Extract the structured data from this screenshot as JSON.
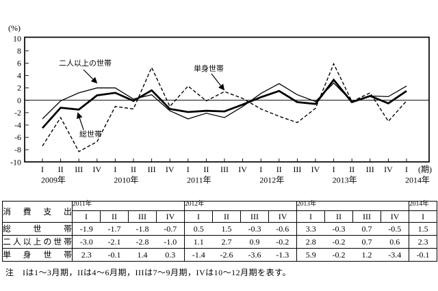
{
  "chart_data": {
    "type": "line",
    "unit_label": "(%)",
    "axis_suffix": "(期)",
    "ylim": [
      -10,
      10
    ],
    "ytick_step": 2,
    "grid": false,
    "legend_position": "inline-annotations",
    "quarter_labels": [
      "I",
      "II",
      "III",
      "IV"
    ],
    "years": [
      {
        "label": "2009年",
        "start": 0
      },
      {
        "label": "2010年",
        "start": 4
      },
      {
        "label": "2011年",
        "start": 8
      },
      {
        "label": "2012年",
        "start": 12
      },
      {
        "label": "2013年",
        "start": 16
      },
      {
        "label": "2014年",
        "start": 20
      }
    ],
    "series": [
      {
        "key": "total-households",
        "name": "総世帯",
        "style": "thick-solid",
        "values": [
          -4.5,
          -1.2,
          -1.5,
          0.8,
          1.2,
          -0.1,
          1.6,
          -1.4,
          -1.9,
          -1.7,
          -1.8,
          -0.7,
          0.5,
          1.5,
          -0.3,
          -0.6,
          3.3,
          -0.3,
          0.7,
          -0.5,
          1.5
        ]
      },
      {
        "key": "two-or-more-person-households",
        "name": "二人以上の世帯",
        "style": "thin-solid",
        "values": [
          -3.0,
          -0.1,
          1.2,
          2.0,
          2.0,
          0.2,
          0.9,
          -1.7,
          -3.0,
          -2.1,
          -2.8,
          -1.0,
          1.1,
          2.7,
          0.9,
          -0.2,
          2.8,
          -0.2,
          0.7,
          0.6,
          2.3
        ]
      },
      {
        "key": "single-person-households",
        "name": "単身世帯",
        "style": "dashed",
        "values": [
          -7.4,
          -2.8,
          -8.3,
          -6.7,
          -1.0,
          -1.4,
          5.3,
          -1.0,
          2.3,
          -0.1,
          1.4,
          0.3,
          -1.4,
          -2.6,
          -3.6,
          -1.3,
          5.9,
          -0.2,
          1.2,
          -3.4,
          -0.1
        ]
      }
    ],
    "annotations": [
      {
        "label": "二人以上の世帯",
        "points_to": "two-or-more-person-households"
      },
      {
        "label": "単身世帯",
        "points_to": "single-person-households"
      },
      {
        "label": "総世帯",
        "points_to": "total-households"
      }
    ]
  },
  "table": {
    "corner_label": "消費支出",
    "year_groups": [
      {
        "label": "2011年",
        "cols": 4
      },
      {
        "label": "2012年",
        "cols": 4
      },
      {
        "label": "2013年",
        "cols": 4
      },
      {
        "label": "2014年",
        "cols": 1
      }
    ],
    "quarter_headers": [
      "I",
      "II",
      "III",
      "IV",
      "I",
      "II",
      "III",
      "IV",
      "I",
      "II",
      "III",
      "IV",
      "I"
    ],
    "rows": [
      {
        "label": "総世帯",
        "values": [
          "-1.9",
          "-1.7",
          "-1.8",
          "-0.7",
          "0.5",
          "1.5",
          "-0.3",
          "-0.6",
          "3.3",
          "-0.3",
          "0.7",
          "-0.5",
          "1.5"
        ]
      },
      {
        "label": "二人以上の世帯",
        "values": [
          "-3.0",
          "-2.1",
          "-2.8",
          "-1.0",
          "1.1",
          "2.7",
          "0.9",
          "-0.2",
          "2.8",
          "-0.2",
          "0.7",
          "0.6",
          "2.3"
        ]
      },
      {
        "label": "単身世帯",
        "values": [
          "2.3",
          "-0.1",
          "1.4",
          "0.3",
          "-1.4",
          "-2.6",
          "-3.6",
          "-1.3",
          "5.9",
          "-0.2",
          "1.2",
          "-3.4",
          "-0.1"
        ]
      }
    ]
  },
  "note": "注　Iは1～3月期，IIは4～6月期，IIIは7～9月期，IVは10～12月期を表す。"
}
